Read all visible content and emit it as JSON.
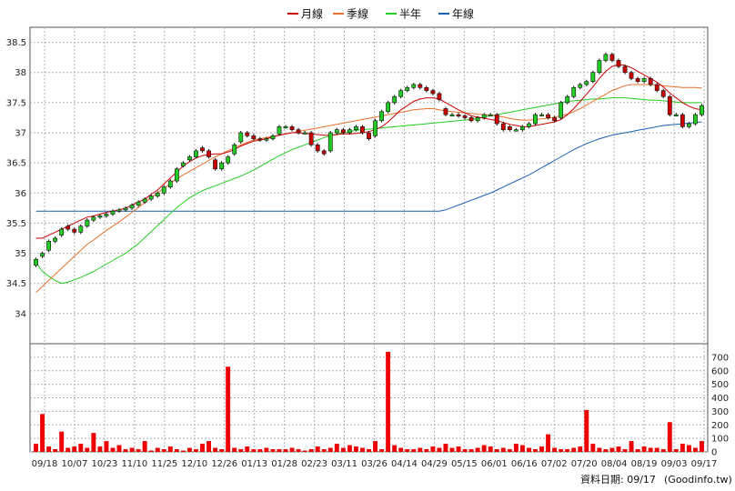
{
  "chart_data": [
    {
      "type": "candlestick",
      "legend": [
        {
          "name": "月線",
          "color": "#cc0000"
        },
        {
          "name": "季線",
          "color": "#e8702a"
        },
        {
          "name": "半年",
          "color": "#22cc22"
        },
        {
          "name": "年線",
          "color": "#1a5fb4"
        }
      ],
      "ylim": [
        33.5,
        38.75
      ],
      "y_ticks": [
        "34",
        "34.5",
        "35",
        "35.5",
        "36",
        "36.5",
        "37",
        "37.5",
        "38",
        "38.5"
      ],
      "x_ticks": [
        "09/18",
        "10/07",
        "10/23",
        "11/10",
        "11/25",
        "12/10",
        "12/26",
        "01/13",
        "01/28",
        "02/23",
        "03/11",
        "03/26",
        "04/14",
        "04/29",
        "05/15",
        "06/01",
        "06/16",
        "07/02",
        "07/20",
        "08/04",
        "08/19",
        "09/03",
        "09/17"
      ],
      "grid": true,
      "up_color": "#22cc22",
      "down_color": "#cc0000",
      "close": [
        34.9,
        35.0,
        35.2,
        35.25,
        35.4,
        35.4,
        35.35,
        35.45,
        35.55,
        35.6,
        35.62,
        35.65,
        35.7,
        35.72,
        35.75,
        35.8,
        35.85,
        35.9,
        35.95,
        36.0,
        36.1,
        36.2,
        36.4,
        36.5,
        36.6,
        36.7,
        36.7,
        36.6,
        36.4,
        36.5,
        36.6,
        36.8,
        37.0,
        36.95,
        36.9,
        36.88,
        36.9,
        36.95,
        37.1,
        37.1,
        37.05,
        37.0,
        37.0,
        36.8,
        36.7,
        36.65,
        37.0,
        37.05,
        37.0,
        37.05,
        37.1,
        37.0,
        36.9,
        37.2,
        37.35,
        37.5,
        37.6,
        37.7,
        37.75,
        37.8,
        37.75,
        37.7,
        37.65,
        37.55,
        37.3,
        37.3,
        37.28,
        37.25,
        37.2,
        37.25,
        37.3,
        37.3,
        37.15,
        37.05,
        37.05,
        37.05,
        37.1,
        37.15,
        37.3,
        37.3,
        37.25,
        37.2,
        37.5,
        37.6,
        37.75,
        37.8,
        37.85,
        38.0,
        38.2,
        38.3,
        38.2,
        38.1,
        38.0,
        37.9,
        37.85,
        37.9,
        37.8,
        37.7,
        37.6,
        37.3,
        37.3,
        37.1,
        37.15,
        37.3,
        37.45
      ],
      "open": [
        34.8,
        34.95,
        35.05,
        35.2,
        35.3,
        35.45,
        35.4,
        35.35,
        35.45,
        35.55,
        35.6,
        35.62,
        35.65,
        35.7,
        35.72,
        35.75,
        35.8,
        35.85,
        35.9,
        35.95,
        36.0,
        36.1,
        36.2,
        36.45,
        36.55,
        36.6,
        36.75,
        36.7,
        36.55,
        36.4,
        36.5,
        36.65,
        36.85,
        37.0,
        36.95,
        36.9,
        36.88,
        36.9,
        36.98,
        37.1,
        37.1,
        37.05,
        37.0,
        37.0,
        36.8,
        36.7,
        36.7,
        37.0,
        37.05,
        37.0,
        37.05,
        37.1,
        37.0,
        36.95,
        37.2,
        37.35,
        37.5,
        37.6,
        37.7,
        37.75,
        37.8,
        37.75,
        37.7,
        37.65,
        37.4,
        37.3,
        37.3,
        37.28,
        37.25,
        37.2,
        37.25,
        37.3,
        37.3,
        37.15,
        37.1,
        37.05,
        37.05,
        37.1,
        37.15,
        37.3,
        37.3,
        37.25,
        37.25,
        37.5,
        37.6,
        37.75,
        37.8,
        37.85,
        38.0,
        38.2,
        38.3,
        38.2,
        38.1,
        38.0,
        37.9,
        37.85,
        37.9,
        37.8,
        37.7,
        37.6,
        37.3,
        37.3,
        37.1,
        37.15,
        37.3
      ],
      "ma_month": [
        35.25,
        35.25,
        35.3,
        35.35,
        35.4,
        35.45,
        35.5,
        35.55,
        35.6,
        35.62,
        35.65,
        35.68,
        35.7,
        35.72,
        35.75,
        35.8,
        35.85,
        35.9,
        35.98,
        36.05,
        36.15,
        36.25,
        36.35,
        36.45,
        36.52,
        36.58,
        36.62,
        36.64,
        36.65,
        36.65,
        36.68,
        36.72,
        36.78,
        36.82,
        36.86,
        36.88,
        36.9,
        36.93,
        36.96,
        36.98,
        37.0,
        37.0,
        36.99,
        36.98,
        36.97,
        36.96,
        36.96,
        36.97,
        36.98,
        36.98,
        36.99,
        37.0,
        37.02,
        37.05,
        37.1,
        37.18,
        37.28,
        37.38,
        37.45,
        37.52,
        37.56,
        37.58,
        37.58,
        37.56,
        37.5,
        37.44,
        37.38,
        37.33,
        37.28,
        37.26,
        37.24,
        37.22,
        37.2,
        37.17,
        37.14,
        37.12,
        37.1,
        37.1,
        37.12,
        37.14,
        37.16,
        37.18,
        37.22,
        37.3,
        37.4,
        37.52,
        37.64,
        37.76,
        37.9,
        38.02,
        38.1,
        38.13,
        38.12,
        38.08,
        38.02,
        37.96,
        37.9,
        37.84,
        37.76,
        37.66,
        37.58,
        37.5,
        37.44,
        37.4,
        37.38
      ],
      "ma_quarter": [
        34.35,
        34.45,
        34.55,
        34.65,
        34.75,
        34.85,
        34.95,
        35.05,
        35.15,
        35.22,
        35.3,
        35.38,
        35.45,
        35.52,
        35.6,
        35.68,
        35.76,
        35.84,
        35.92,
        36.0,
        36.08,
        36.16,
        36.24,
        36.3,
        36.36,
        36.42,
        36.48,
        36.54,
        36.6,
        36.65,
        36.7,
        36.75,
        36.8,
        36.84,
        36.88,
        36.9,
        36.92,
        36.94,
        36.96,
        36.98,
        37.0,
        37.02,
        37.04,
        37.06,
        37.08,
        37.1,
        37.12,
        37.14,
        37.16,
        37.18,
        37.2,
        37.22,
        37.24,
        37.26,
        37.28,
        37.3,
        37.32,
        37.34,
        37.36,
        37.38,
        37.39,
        37.4,
        37.4,
        37.38,
        37.36,
        37.35,
        37.34,
        37.33,
        37.32,
        37.31,
        37.3,
        37.29,
        37.28,
        37.26,
        37.24,
        37.22,
        37.21,
        37.21,
        37.22,
        37.23,
        37.24,
        37.26,
        37.28,
        37.31,
        37.35,
        37.4,
        37.46,
        37.52,
        37.58,
        37.64,
        37.7,
        37.74,
        37.78,
        37.8,
        37.8,
        37.8,
        37.8,
        37.79,
        37.78,
        37.77,
        37.76,
        37.75,
        37.75,
        37.75,
        37.74
      ],
      "ma_half": [
        34.85,
        34.7,
        34.62,
        34.55,
        34.5,
        34.52,
        34.56,
        34.6,
        34.65,
        34.7,
        34.76,
        34.82,
        34.88,
        34.94,
        35.0,
        35.08,
        35.16,
        35.26,
        35.36,
        35.46,
        35.56,
        35.66,
        35.76,
        35.84,
        35.92,
        35.98,
        36.04,
        36.08,
        36.12,
        36.16,
        36.2,
        36.24,
        36.28,
        36.33,
        36.38,
        36.44,
        36.5,
        36.56,
        36.62,
        36.67,
        36.72,
        36.76,
        36.8,
        36.84,
        36.88,
        36.92,
        36.95,
        36.98,
        37.0,
        37.02,
        37.04,
        37.05,
        37.06,
        37.07,
        37.08,
        37.09,
        37.1,
        37.11,
        37.12,
        37.13,
        37.14,
        37.15,
        37.16,
        37.17,
        37.18,
        37.19,
        37.2,
        37.21,
        37.22,
        37.24,
        37.26,
        37.28,
        37.3,
        37.32,
        37.34,
        37.36,
        37.38,
        37.4,
        37.42,
        37.44,
        37.46,
        37.48,
        37.5,
        37.52,
        37.53,
        37.54,
        37.55,
        37.56,
        37.56,
        37.57,
        37.58,
        37.58,
        37.58,
        37.57,
        37.56,
        37.55,
        37.54,
        37.54,
        37.53,
        37.52,
        37.51,
        37.5,
        37.5,
        37.5,
        37.5
      ],
      "ma_year": [
        35.7,
        35.7,
        35.7,
        35.7,
        35.7,
        35.7,
        35.7,
        35.7,
        35.7,
        35.7,
        35.7,
        35.7,
        35.7,
        35.7,
        35.7,
        35.7,
        35.7,
        35.7,
        35.7,
        35.7,
        35.7,
        35.7,
        35.7,
        35.7,
        35.7,
        35.7,
        35.7,
        35.7,
        35.7,
        35.7,
        35.7,
        35.7,
        35.7,
        35.7,
        35.7,
        35.7,
        35.7,
        35.7,
        35.7,
        35.7,
        35.7,
        35.7,
        35.7,
        35.7,
        35.7,
        35.7,
        35.7,
        35.7,
        35.7,
        35.7,
        35.7,
        35.7,
        35.7,
        35.7,
        35.7,
        35.7,
        35.7,
        35.7,
        35.7,
        35.7,
        35.7,
        35.7,
        35.7,
        35.7,
        35.72,
        35.76,
        35.8,
        35.84,
        35.88,
        35.92,
        35.96,
        36.0,
        36.05,
        36.1,
        36.15,
        36.2,
        36.25,
        36.3,
        36.36,
        36.42,
        36.48,
        36.54,
        36.6,
        36.66,
        36.72,
        36.77,
        36.82,
        36.86,
        36.9,
        36.93,
        36.96,
        36.98,
        37.0,
        37.02,
        37.04,
        37.06,
        37.08,
        37.1,
        37.12,
        37.13,
        37.14,
        37.15,
        37.16,
        37.17,
        37.18
      ]
    },
    {
      "type": "bar",
      "series_name": "volume",
      "ylim": [
        0,
        800
      ],
      "y_ticks": [
        "0",
        "100",
        "200",
        "300",
        "400",
        "500",
        "600",
        "700"
      ],
      "bar_color": "#ee0000",
      "values": [
        60,
        280,
        40,
        20,
        150,
        30,
        40,
        60,
        30,
        140,
        40,
        80,
        30,
        50,
        20,
        30,
        20,
        80,
        10,
        30,
        20,
        40,
        20,
        10,
        30,
        20,
        60,
        80,
        30,
        20,
        630,
        30,
        20,
        40,
        20,
        20,
        30,
        20,
        20,
        20,
        30,
        20,
        10,
        20,
        40,
        20,
        30,
        60,
        30,
        50,
        40,
        30,
        20,
        80,
        20,
        740,
        50,
        30,
        20,
        20,
        30,
        20,
        40,
        30,
        60,
        30,
        40,
        20,
        20,
        30,
        50,
        40,
        20,
        30,
        20,
        60,
        50,
        30,
        20,
        40,
        130,
        30,
        20,
        20,
        30,
        40,
        310,
        60,
        30,
        20,
        30,
        40,
        20,
        80,
        20,
        40,
        30,
        30,
        20,
        220,
        20,
        60,
        50,
        30,
        80
      ]
    }
  ],
  "footer": {
    "label": "資料日期: 09/17",
    "source": "(Goodinfo.tw)"
  }
}
